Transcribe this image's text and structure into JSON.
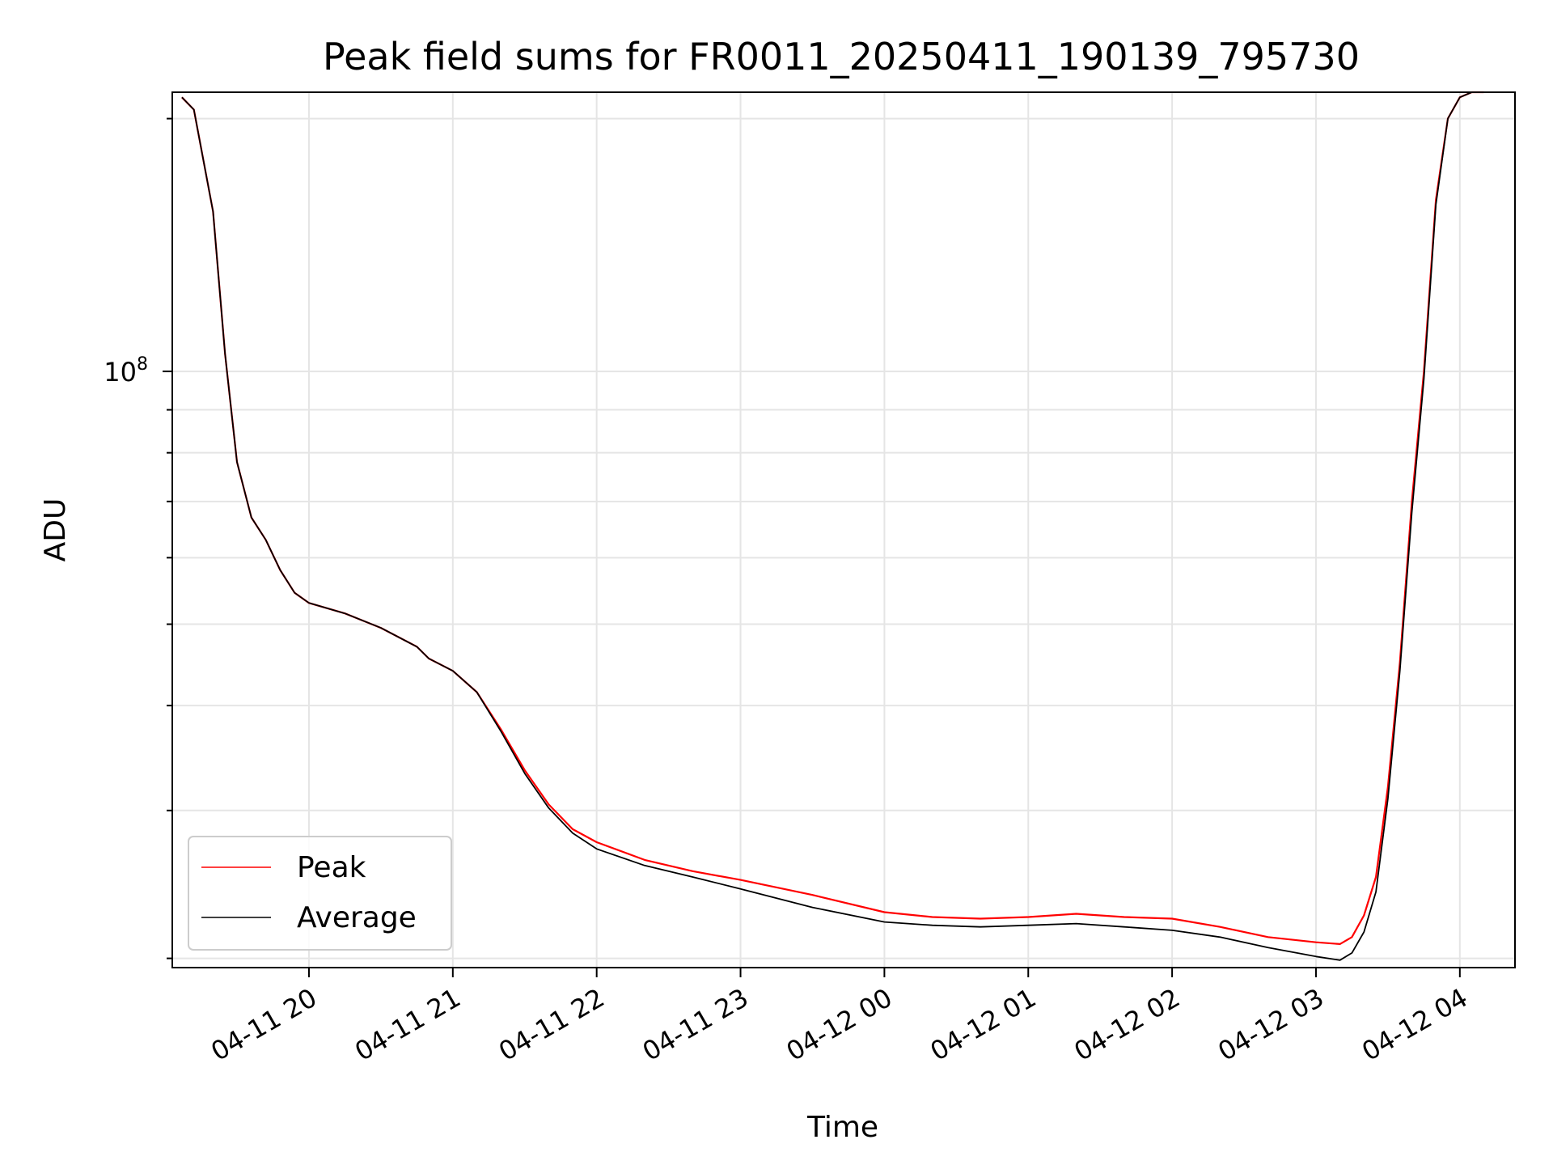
{
  "chart_data": {
    "type": "line",
    "title": "Peak field sums for FR0011_20250411_190139_795730",
    "xlabel": "Time",
    "ylabel": "ADU",
    "yscale": "log",
    "xlim": [
      "04-11 19:03",
      "04-12 04:23"
    ],
    "ylim": [
      19500000,
      215000000
    ],
    "grid": true,
    "legend_position": "lower-left",
    "x_ticks": [
      "04-11 20",
      "04-11 21",
      "04-11 22",
      "04-11 23",
      "04-12 00",
      "04-12 01",
      "04-12 02",
      "04-12 03",
      "04-12 04"
    ],
    "y_ticks": [
      {
        "base": "10",
        "exponent": "8"
      }
    ],
    "series": [
      {
        "name": "Peak",
        "color": "#ff0000",
        "x": [
          "04-11 19:07",
          "04-11 19:12",
          "04-11 19:20",
          "04-11 19:25",
          "04-11 19:30",
          "04-11 19:36",
          "04-11 19:42",
          "04-11 19:48",
          "04-11 19:54",
          "04-11 20:00",
          "04-11 20:15",
          "04-11 20:30",
          "04-11 20:45",
          "04-11 20:50",
          "04-11 21:00",
          "04-11 21:10",
          "04-11 21:20",
          "04-11 21:30",
          "04-11 21:40",
          "04-11 21:50",
          "04-11 22:00",
          "04-11 22:20",
          "04-11 22:40",
          "04-11 23:00",
          "04-11 23:30",
          "04-12 00:00",
          "04-12 00:20",
          "04-12 00:40",
          "04-12 01:00",
          "04-12 01:20",
          "04-12 01:40",
          "04-12 02:00",
          "04-12 02:20",
          "04-12 02:40",
          "04-12 03:00",
          "04-12 03:10",
          "04-12 03:15",
          "04-12 03:20",
          "04-12 03:25",
          "04-12 03:30",
          "04-12 03:35",
          "04-12 03:40",
          "04-12 03:45",
          "04-12 03:50",
          "04-12 03:55",
          "04-12 04:00",
          "04-12 04:05",
          "04-12 04:10"
        ],
        "y": [
          212000000,
          205000000,
          155000000,
          105000000,
          78000000,
          67000000,
          63000000,
          58000000,
          54500000,
          53000000,
          51500000,
          49500000,
          47000000,
          45500000,
          44000000,
          41500000,
          37500000,
          33500000,
          30500000,
          28500000,
          27500000,
          26200000,
          25400000,
          24800000,
          23800000,
          22700000,
          22400000,
          22300000,
          22400000,
          22600000,
          22400000,
          22300000,
          21800000,
          21200000,
          20900000,
          20800000,
          21200000,
          22500000,
          25000000,
          32000000,
          45000000,
          70000000,
          100000000,
          160000000,
          200000000,
          212000000,
          215000000,
          215000000
        ]
      },
      {
        "name": "Average",
        "color": "#000000",
        "x": [
          "04-11 19:07",
          "04-11 19:12",
          "04-11 19:20",
          "04-11 19:25",
          "04-11 19:30",
          "04-11 19:36",
          "04-11 19:42",
          "04-11 19:48",
          "04-11 19:54",
          "04-11 20:00",
          "04-11 20:15",
          "04-11 20:30",
          "04-11 20:45",
          "04-11 20:50",
          "04-11 21:00",
          "04-11 21:10",
          "04-11 21:20",
          "04-11 21:30",
          "04-11 21:40",
          "04-11 21:50",
          "04-11 22:00",
          "04-11 22:20",
          "04-11 22:40",
          "04-11 23:00",
          "04-11 23:30",
          "04-12 00:00",
          "04-12 00:20",
          "04-12 00:40",
          "04-12 01:00",
          "04-12 01:20",
          "04-12 01:40",
          "04-12 02:00",
          "04-12 02:20",
          "04-12 02:40",
          "04-12 03:00",
          "04-12 03:10",
          "04-12 03:15",
          "04-12 03:20",
          "04-12 03:25",
          "04-12 03:30",
          "04-12 03:35",
          "04-12 03:40",
          "04-12 03:45",
          "04-12 03:50",
          "04-12 03:55",
          "04-12 04:00",
          "04-12 04:05",
          "04-12 04:10"
        ],
        "y": [
          212000000,
          205000000,
          155000000,
          105000000,
          78000000,
          67000000,
          63000000,
          58000000,
          54500000,
          53000000,
          51500000,
          49500000,
          47000000,
          45500000,
          44000000,
          41500000,
          37300000,
          33200000,
          30200000,
          28200000,
          27000000,
          25800000,
          25000000,
          24200000,
          23000000,
          22100000,
          21900000,
          21800000,
          21900000,
          22000000,
          21800000,
          21600000,
          21200000,
          20600000,
          20100000,
          19900000,
          20300000,
          21500000,
          24000000,
          31000000,
          44000000,
          68000000,
          98000000,
          158000000,
          200000000,
          212000000,
          215000000,
          215000000
        ]
      }
    ]
  }
}
